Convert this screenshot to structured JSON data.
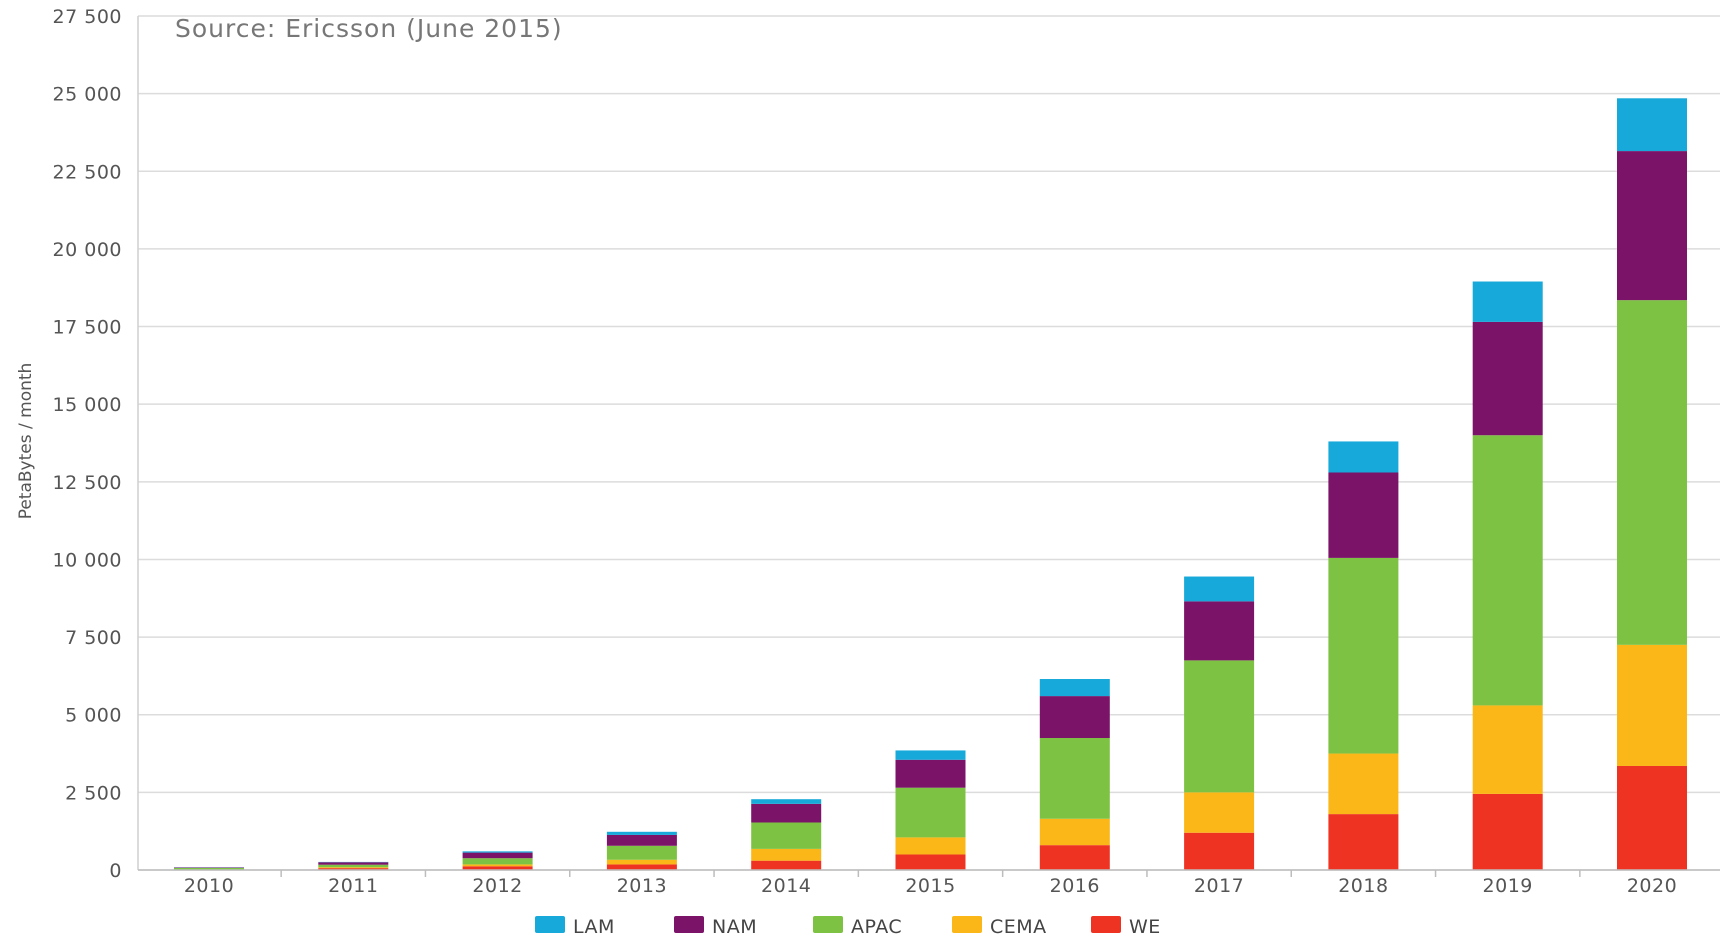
{
  "chart_data": {
    "type": "bar",
    "stacked": true,
    "subtitle": "Source: Ericsson (June 2015)",
    "ylabel": "PetaBytes / month",
    "xlabel": "",
    "ylim": [
      0,
      27500
    ],
    "yticks": [
      0,
      2500,
      5000,
      7500,
      10000,
      12500,
      15000,
      17500,
      20000,
      22500,
      25000,
      27500
    ],
    "ytick_labels": [
      "0",
      "2 500",
      "5 000",
      "7 500",
      "10 000",
      "12 500",
      "15 000",
      "17 500",
      "20 000",
      "22 500",
      "25 000",
      "27 500"
    ],
    "grid": true,
    "legend_position": "bottom",
    "categories": [
      "2010",
      "2011",
      "2012",
      "2013",
      "2014",
      "2015",
      "2016",
      "2017",
      "2018",
      "2019",
      "2020"
    ],
    "series": [
      {
        "name": "WE",
        "color": "#ef3323",
        "values": [
          10,
          60,
          120,
          180,
          300,
          500,
          800,
          1200,
          1800,
          2450,
          3350
        ]
      },
      {
        "name": "CEMA",
        "color": "#fbb617",
        "values": [
          5,
          30,
          60,
          150,
          380,
          550,
          850,
          1300,
          1950,
          2850,
          3900
        ]
      },
      {
        "name": "APAC",
        "color": "#7dc242",
        "values": [
          50,
          80,
          200,
          450,
          850,
          1600,
          2600,
          4250,
          6300,
          8700,
          11100
        ]
      },
      {
        "name": "NAM",
        "color": "#7b1368",
        "values": [
          15,
          80,
          180,
          350,
          600,
          900,
          1350,
          1900,
          2750,
          3650,
          4800
        ]
      },
      {
        "name": "LAM",
        "color": "#17a9d9",
        "values": [
          5,
          10,
          40,
          100,
          150,
          300,
          550,
          800,
          1000,
          1300,
          1700
        ]
      }
    ],
    "legend_order": [
      "LAM",
      "NAM",
      "APAC",
      "CEMA",
      "WE"
    ]
  }
}
